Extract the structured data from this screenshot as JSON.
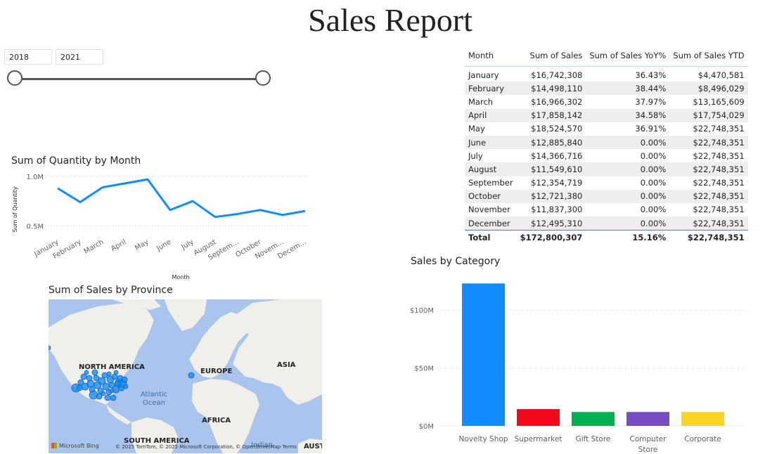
{
  "report_title": "Sales Report",
  "date_slicer": {
    "start": "2018",
    "end": "2021",
    "start_pct": 0,
    "end_pct": 100
  },
  "table": {
    "headers": [
      "Month",
      "Sum of Sales",
      "Sum of Sales YoY%",
      "Sum of Sales YTD"
    ],
    "rows": [
      [
        "January",
        "$16,742,308",
        "36.43%",
        "$4,470,581"
      ],
      [
        "February",
        "$14,498,110",
        "38.44%",
        "$8,496,029"
      ],
      [
        "March",
        "$16,966,302",
        "37.97%",
        "$13,165,609"
      ],
      [
        "April",
        "$17,858,142",
        "34.58%",
        "$17,754,029"
      ],
      [
        "May",
        "$18,524,570",
        "36.91%",
        "$22,748,351"
      ],
      [
        "June",
        "$12,885,840",
        "0.00%",
        "$22,748,351"
      ],
      [
        "July",
        "$14,366,716",
        "0.00%",
        "$22,748,351"
      ],
      [
        "August",
        "$11,549,610",
        "0.00%",
        "$22,748,351"
      ],
      [
        "September",
        "$12,354,719",
        "0.00%",
        "$22,748,351"
      ],
      [
        "October",
        "$12,721,380",
        "0.00%",
        "$22,748,351"
      ],
      [
        "November",
        "$11,837,300",
        "0.00%",
        "$22,748,351"
      ],
      [
        "December",
        "$12,495,310",
        "0.00%",
        "$22,748,351"
      ]
    ],
    "total": [
      "Total",
      "$172,800,307",
      "15.16%",
      "$22,748,351"
    ]
  },
  "chart_data": [
    {
      "type": "line",
      "title": "Sum of Quantity by Month",
      "xlabel": "Month",
      "ylabel": "Sum of Quantity",
      "categories": [
        "January",
        "February",
        "March",
        "April",
        "May",
        "June",
        "July",
        "August",
        "Septem...",
        "October",
        "Novem...",
        "Decem..."
      ],
      "values": [
        0.88,
        0.74,
        0.89,
        0.93,
        0.97,
        0.66,
        0.75,
        0.59,
        0.62,
        0.66,
        0.61,
        0.65
      ],
      "yticks": [
        "1.0M",
        "0.5M"
      ],
      "ytick_values": [
        1.0,
        0.5
      ],
      "ylim": [
        0.41,
        1.0
      ],
      "color": "#118dff",
      "grid": true
    },
    {
      "type": "bar",
      "title": "Sales by Category",
      "categories": [
        "Novelty Shop",
        "Supermarket",
        "Gift Store",
        "Computer Store",
        "Corporate"
      ],
      "category_lines": [
        [
          "Novelty Shop"
        ],
        [
          "Supermarket"
        ],
        [
          "Gift Store"
        ],
        [
          "Computer",
          "Store"
        ],
        [
          "Corporate"
        ]
      ],
      "values": [
        123,
        14.5,
        12,
        12,
        12
      ],
      "colors": [
        "#118dff",
        "#f00a1c",
        "#00b050",
        "#744ec2",
        "#fad524"
      ],
      "yticks": [
        "$100M",
        "$50M",
        "$0M"
      ],
      "ytick_values": [
        100,
        50,
        0
      ],
      "ylim": [
        0,
        125
      ],
      "grid": true
    }
  ],
  "map": {
    "title": "Sum of Sales by Province",
    "labels": {
      "north_america": "NORTH AMERICA",
      "europe": "EUROPE",
      "asia": "ASIA",
      "africa": "AFRICA",
      "south_america": "SOUTH AMERICA",
      "australia": "AUST",
      "atlantic": "Atlantic Ocean",
      "indian": "Indian"
    },
    "attribution": "© 2025 TomTom, © 2025 Microsoft Corporation, © OpenStreetMap  Terms",
    "provider": "Microsoft Bing",
    "bubble_color": "#118dff"
  }
}
